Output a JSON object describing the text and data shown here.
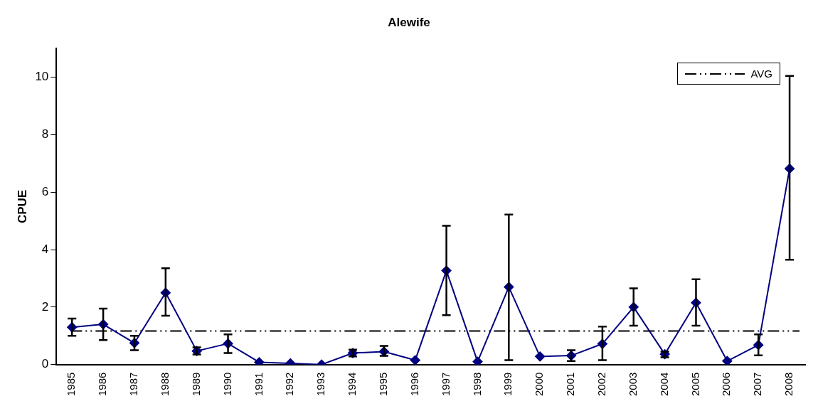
{
  "chart_data": {
    "type": "line",
    "title": "Alewife",
    "ylabel": "CPUE",
    "categories": [
      "1985",
      "1986",
      "1987",
      "1988",
      "1989",
      "1990",
      "1991",
      "1992",
      "1993",
      "1994",
      "1995",
      "1996",
      "1997",
      "1998",
      "1999",
      "2000",
      "2001",
      "2002",
      "2003",
      "2004",
      "2005",
      "2006",
      "2007",
      "2008"
    ],
    "series": [
      {
        "color": "#000080",
        "values": [
          1.3,
          1.4,
          0.75,
          2.5,
          0.47,
          0.73,
          0.08,
          0.04,
          0.0,
          0.4,
          0.45,
          0.15,
          3.27,
          0.1,
          2.7,
          0.28,
          0.31,
          0.72,
          2.0,
          0.36,
          2.15,
          0.12,
          0.68,
          6.82
        ],
        "errors": [
          [
            1.0,
            1.6
          ],
          [
            0.85,
            1.95
          ],
          [
            0.5,
            1.0
          ],
          [
            1.7,
            3.35
          ],
          [
            0.35,
            0.6
          ],
          [
            0.4,
            1.05
          ],
          null,
          null,
          null,
          [
            0.28,
            0.52
          ],
          [
            0.3,
            0.65
          ],
          null,
          [
            1.72,
            4.83
          ],
          null,
          [
            0.15,
            5.22
          ],
          null,
          [
            0.12,
            0.5
          ],
          [
            0.15,
            1.32
          ],
          [
            1.35,
            2.65
          ],
          [
            0.25,
            0.45
          ],
          [
            1.35,
            2.97
          ],
          null,
          [
            0.32,
            1.05
          ],
          [
            3.65,
            10.05
          ]
        ]
      }
    ],
    "ref_lines": [
      {
        "axis": "y",
        "value": 1.17,
        "label": "AVG",
        "color": "#000000",
        "line_style": "dashdotdot"
      }
    ],
    "ylim": [
      0,
      11
    ],
    "yticks": [
      0,
      2,
      4,
      6,
      8,
      10
    ],
    "grid": false,
    "legend": "top right",
    "marker": "diamond",
    "line_style": "solid"
  }
}
